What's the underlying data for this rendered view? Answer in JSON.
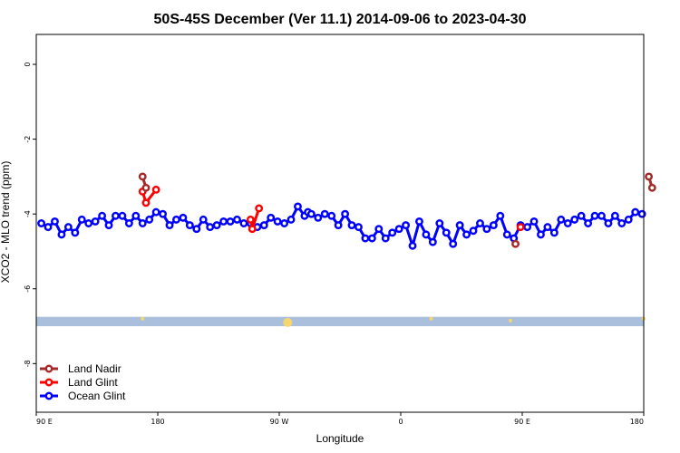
{
  "chart_data": {
    "type": "line",
    "title": "50S-45S December (Ver 11.1)   2014-09-06 to 2023-04-30",
    "xlabel": "Longitude",
    "ylabel": "XCO2 - MLO trend (ppm)",
    "xlim": [
      90,
      450
    ],
    "ylim": [
      -9.3,
      0.8
    ],
    "x_ticks": [
      {
        "value": 90,
        "label": "90 E"
      },
      {
        "value": 162,
        "label": "180"
      },
      {
        "value": 234,
        "label": "90 W"
      },
      {
        "value": 306,
        "label": "0"
      },
      {
        "value": 378,
        "label": "90 E"
      },
      {
        "value": 450,
        "label": "180"
      }
    ],
    "y_ticks": [
      {
        "value": 0,
        "label": "0"
      },
      {
        "value": -2,
        "label": "-2"
      },
      {
        "value": -4,
        "label": "-4"
      },
      {
        "value": -6,
        "label": "-6"
      },
      {
        "value": -8,
        "label": "-8"
      }
    ],
    "legend": {
      "position": "bottom-left"
    },
    "series": [
      {
        "name": "Ocean Glint",
        "color": "#0000ff",
        "x": [
          93,
          97,
          101,
          105,
          109,
          113,
          117,
          121,
          125,
          129,
          133,
          137,
          141,
          145,
          149,
          153,
          157,
          161,
          165,
          169,
          173,
          177,
          181,
          185,
          189,
          193,
          197,
          201,
          205,
          209,
          213,
          217,
          221,
          225,
          229,
          233,
          237,
          241,
          245,
          249,
          251,
          253,
          257,
          261,
          265,
          269,
          273,
          277,
          281,
          285,
          289,
          293,
          297,
          301,
          305,
          309,
          313,
          317,
          321,
          325,
          329,
          333,
          337,
          341,
          345,
          349,
          353,
          357,
          361,
          365,
          369,
          373,
          377,
          381,
          385,
          389,
          393,
          397,
          401,
          405,
          409,
          413,
          417,
          421,
          425,
          429,
          433,
          437,
          441,
          445,
          449
        ],
        "values": [
          -4.25,
          -4.35,
          -4.2,
          -4.55,
          -4.35,
          -4.5,
          -4.15,
          -4.25,
          -4.2,
          -4.05,
          -4.3,
          -4.05,
          -4.05,
          -4.25,
          -4.05,
          -4.25,
          -4.15,
          -3.95,
          -4.0,
          -4.3,
          -4.15,
          -4.1,
          -4.3,
          -4.4,
          -4.15,
          -4.35,
          -4.3,
          -4.2,
          -4.2,
          -4.15,
          -4.25,
          -4.25,
          -4.35,
          -4.3,
          -4.1,
          -4.2,
          -4.25,
          -4.15,
          -3.8,
          -4.05,
          -3.95,
          -4.0,
          -4.1,
          -4.0,
          -4.05,
          -4.3,
          -4.0,
          -4.3,
          -4.35,
          -4.65,
          -4.65,
          -4.4,
          -4.65,
          -4.5,
          -4.4,
          -4.3,
          -4.85,
          -4.2,
          -4.55,
          -4.75,
          -4.25,
          -4.5,
          -4.8,
          -4.3,
          -4.55,
          -4.45,
          -4.25,
          -4.4,
          -4.3,
          -4.05,
          -4.55,
          -4.65,
          -4.3,
          -4.35,
          -4.2,
          -4.55,
          -4.35,
          -4.5,
          -4.15,
          -4.25,
          -4.15,
          -4.05,
          -4.25,
          -4.05,
          -4.05,
          -4.25,
          -4.05,
          -4.25,
          -4.15,
          -3.95,
          -4.0
        ]
      },
      {
        "name": "Land Glint",
        "color": "#ff0000",
        "x": [
          153,
          155,
          161,
          217,
          218,
          222,
          377
        ],
        "values": [
          -3.4,
          -3.7,
          -3.35,
          -4.15,
          -4.4,
          -3.85,
          -4.35
        ]
      },
      {
        "name": "Land Nadir",
        "color": "#a52a2a",
        "x": [
          153,
          155,
          374,
          453,
          455
        ],
        "values": [
          -3.0,
          -3.3,
          -4.8,
          -3.0,
          -3.3
        ]
      }
    ],
    "land_band": {
      "y_top": -6.75,
      "y_bottom": -7.0,
      "color": "#a9bfdc"
    },
    "land_marks": [
      {
        "x": 153,
        "value": -6.8
      },
      {
        "x": 239,
        "value": -6.9
      },
      {
        "x": 324,
        "value": -6.8
      },
      {
        "x": 371,
        "value": -6.85
      },
      {
        "x": 450,
        "value": -6.8
      }
    ]
  }
}
